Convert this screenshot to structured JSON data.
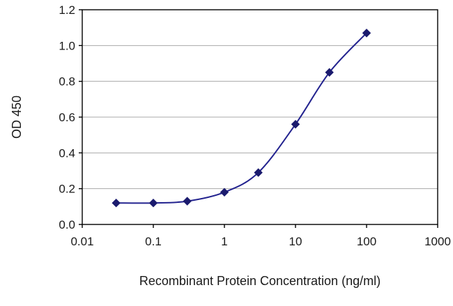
{
  "chart_data": {
    "type": "line",
    "title": "",
    "xlabel": "Recombinant Protein Concentration (ng/ml)",
    "ylabel": "OD 450",
    "x_scale": "log",
    "xlim": [
      0.01,
      1000
    ],
    "ylim": [
      0.0,
      1.2
    ],
    "x_ticks": [
      0.01,
      0.1,
      1,
      10,
      100,
      1000
    ],
    "x_tick_labels": [
      "0.01",
      "0.1",
      "1",
      "10",
      "100",
      "1000"
    ],
    "y_ticks": [
      0.0,
      0.2,
      0.4,
      0.6,
      0.8,
      1.0,
      1.2
    ],
    "y_tick_labels": [
      "0.0",
      "0.2",
      "0.4",
      "0.6",
      "0.8",
      "1.0",
      "1.2"
    ],
    "grid": "horizontal",
    "legend": "none",
    "colors": {
      "line": "#23238f",
      "marker": "#1b1b6e",
      "gridline": "#a8a8a8",
      "axis": "#000000"
    },
    "series": [
      {
        "name": "OD 450",
        "marker": "diamond",
        "x": [
          0.03,
          0.1,
          0.3,
          1,
          3,
          10,
          30,
          100
        ],
        "y": [
          0.12,
          0.12,
          0.13,
          0.18,
          0.29,
          0.56,
          0.85,
          1.07
        ]
      }
    ]
  }
}
